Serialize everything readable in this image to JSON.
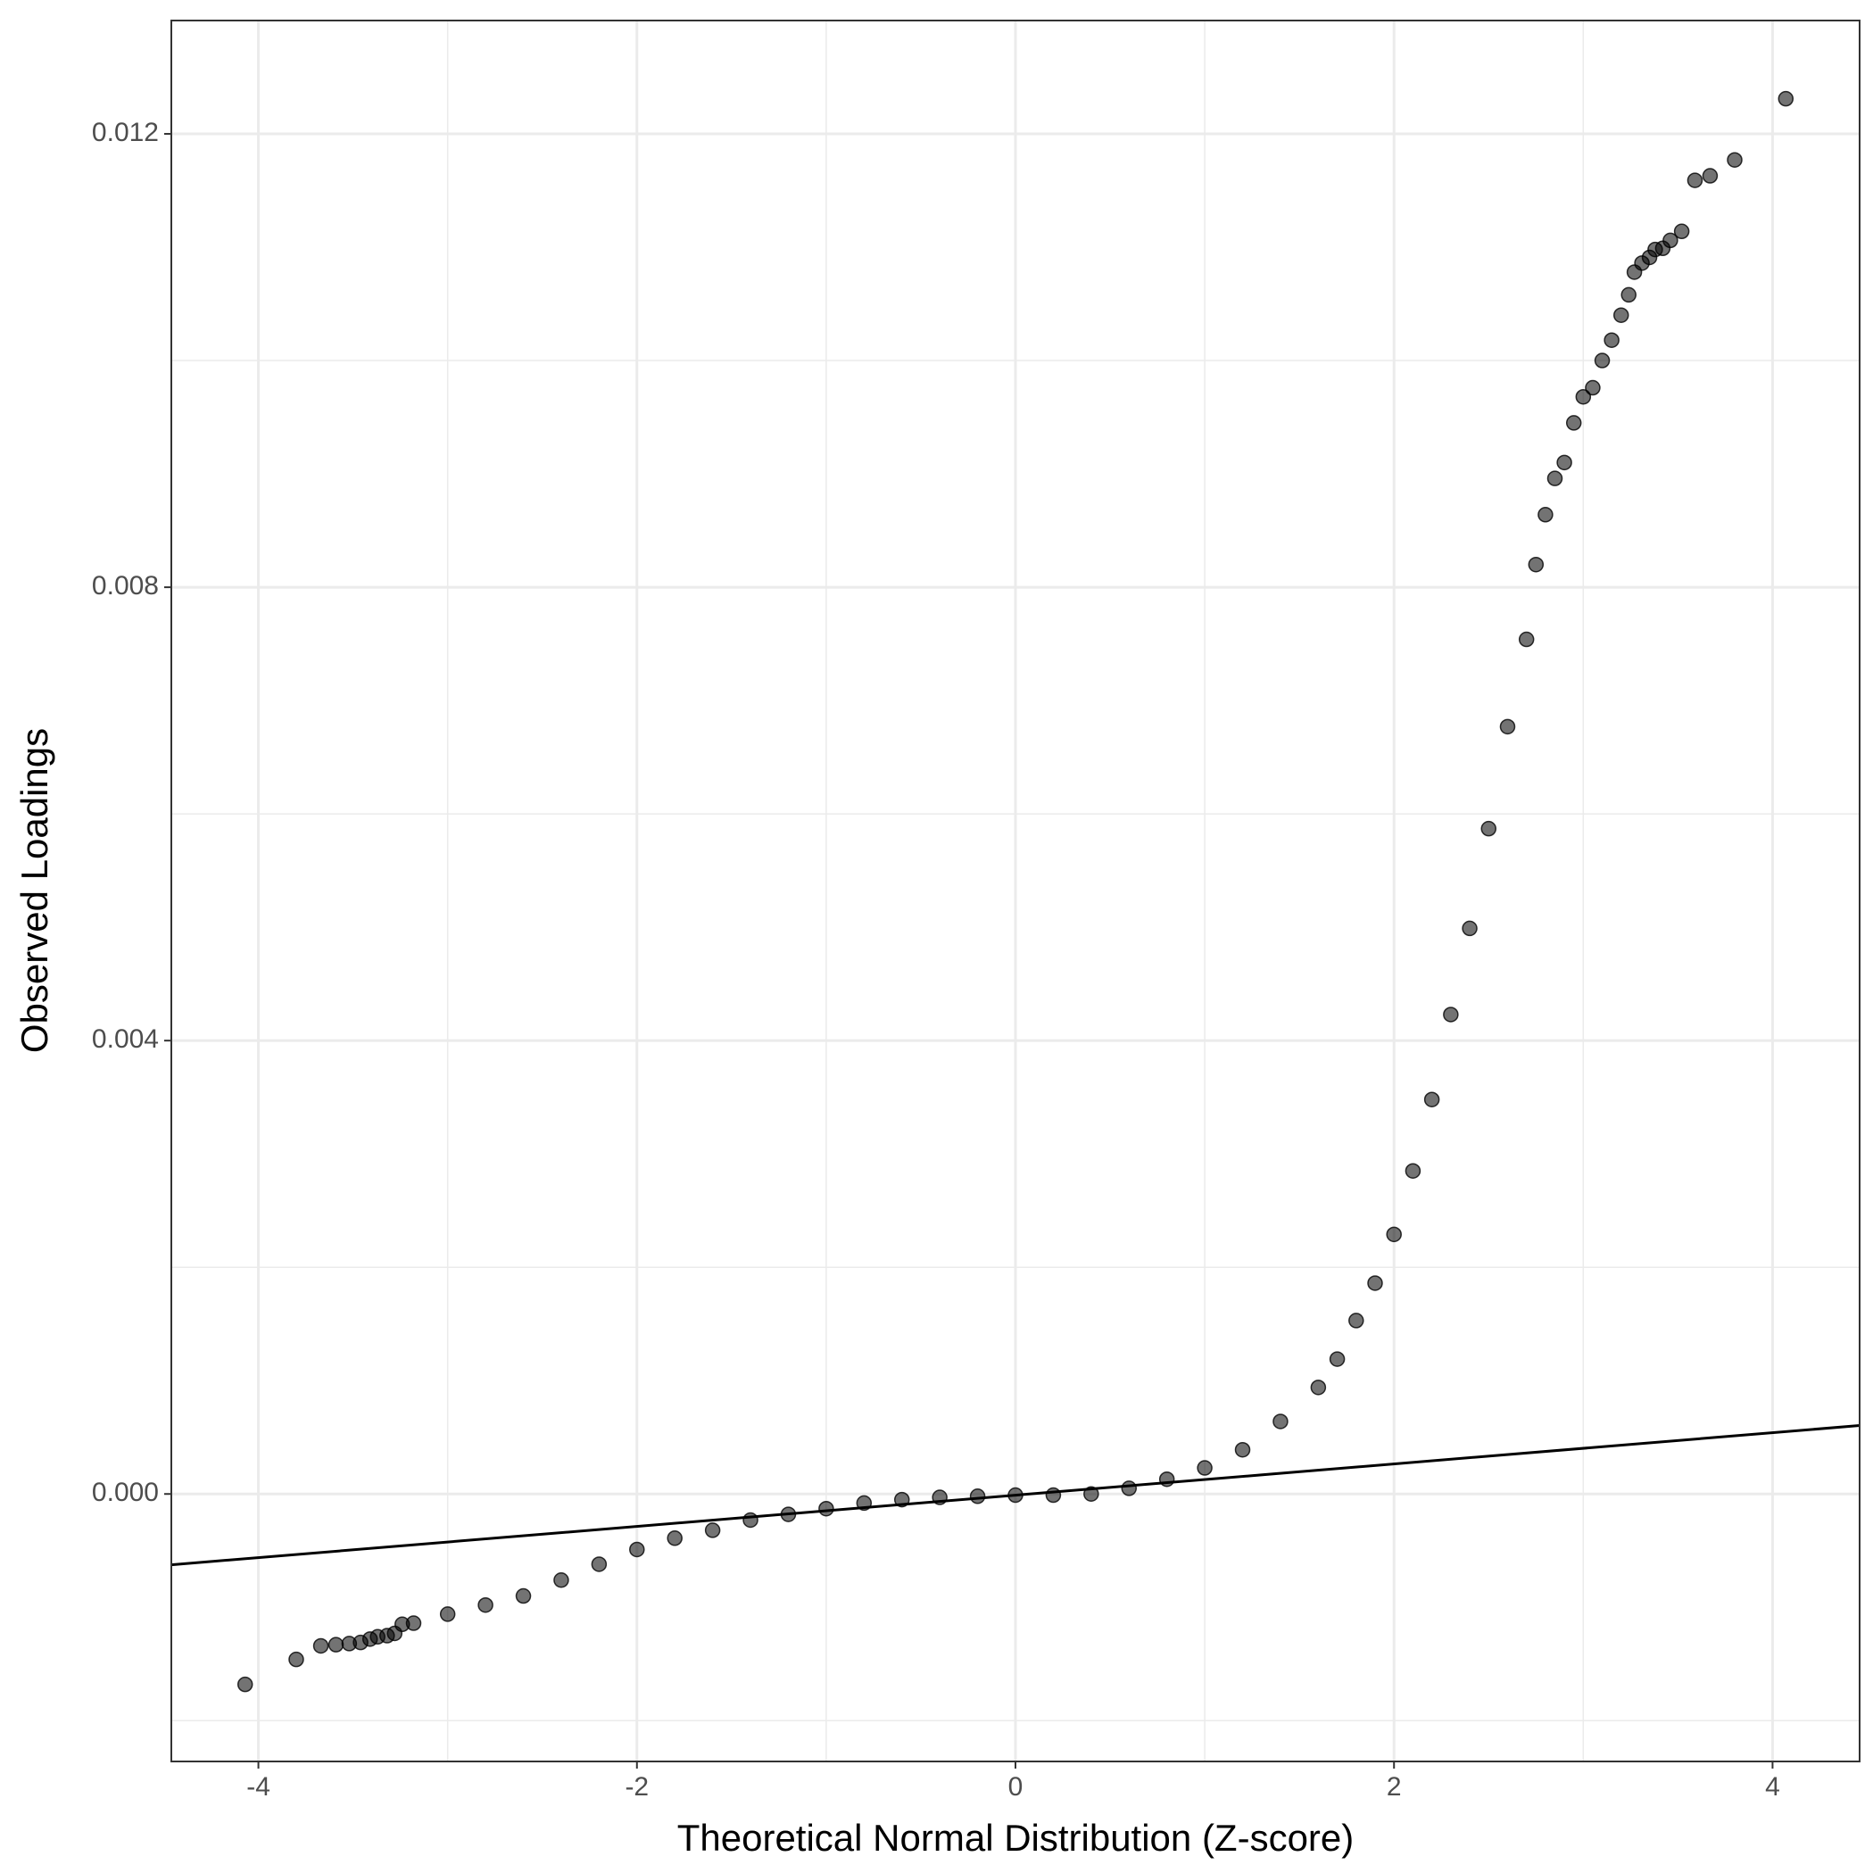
{
  "chart_data": {
    "type": "scatter",
    "x_label": "Theoretical Normal Distribution (Z-score)",
    "y_label": "Observed Loadings",
    "xlim": [
      -4.46,
      4.46
    ],
    "ylim": [
      -0.00236,
      0.013
    ],
    "xticks": [
      -4,
      -2,
      0,
      2,
      4
    ],
    "yticks": [
      {
        "value": 0,
        "label": "0.000"
      },
      {
        "value": 0.004,
        "label": "0.004"
      },
      {
        "value": 0.008,
        "label": "0.008"
      },
      {
        "value": 0.012,
        "label": "0.012"
      }
    ],
    "x_minor_ticks": [
      -3,
      -1,
      1,
      3
    ],
    "y_minor_ticks": [
      -0.002,
      0.002,
      0.006,
      0.01
    ],
    "grid": true,
    "color": "#000000",
    "x": [
      -4.07,
      -3.8,
      -3.67,
      -3.59,
      -3.52,
      -3.46,
      -3.41,
      -3.37,
      -3.32,
      -3.28,
      -3.24,
      -3.18,
      -3.0,
      -2.8,
      -2.6,
      -2.4,
      -2.2,
      -2.0,
      -1.8,
      -1.6,
      -1.4,
      -1.2,
      -1.0,
      -0.8,
      -0.6,
      -0.4,
      -0.2,
      0,
      0.2,
      0.4,
      0.6,
      0.8,
      1.0,
      1.2,
      1.4,
      1.6,
      1.7,
      1.8,
      1.9,
      2.0,
      2.1,
      2.2,
      2.3,
      2.4,
      2.5,
      2.6,
      2.7,
      2.75,
      2.8,
      2.85,
      2.9,
      2.95,
      3.0,
      3.05,
      3.1,
      3.15,
      3.2,
      3.24,
      3.27,
      3.31,
      3.35,
      3.38,
      3.42,
      3.46,
      3.52,
      3.59,
      3.67,
      3.8,
      4.07
    ],
    "y": [
      -0.00168,
      -0.00146,
      -0.00134,
      -0.00133,
      -0.00132,
      -0.00131,
      -0.00128,
      -0.00126,
      -0.00125,
      -0.00123,
      -0.00115,
      -0.00114,
      -0.00106,
      -0.00098,
      -0.0009,
      -0.00076,
      -0.00062,
      -0.00049,
      -0.00039,
      -0.00032,
      -0.00023,
      -0.00018,
      -0.00013,
      -8e-05,
      -5e-05,
      -3e-05,
      -2e-05,
      -1e-05,
      -1e-05,
      0,
      5e-05,
      0.00013,
      0.00023,
      0.00039,
      0.00064,
      0.00094,
      0.00119,
      0.00153,
      0.00186,
      0.00229,
      0.00285,
      0.00348,
      0.00423,
      0.00499,
      0.00587,
      0.00677,
      0.00754,
      0.0082,
      0.00864,
      0.00896,
      0.0091,
      0.00945,
      0.00968,
      0.00976,
      0.01,
      0.01018,
      0.0104,
      0.01058,
      0.01078,
      0.01086,
      0.01091,
      0.01098,
      0.01099,
      0.01106,
      0.01114,
      0.01159,
      0.01163,
      0.01177,
      0.01231
    ],
    "reference_line": {
      "x": [
        -4.46,
        4.46
      ],
      "y": [
        -0.000625,
        0.000604
      ]
    }
  }
}
